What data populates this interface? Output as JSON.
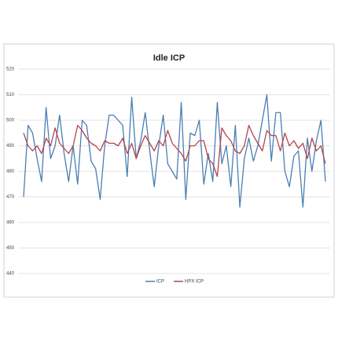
{
  "chart_data": {
    "type": "line",
    "title": "Idle ICP",
    "categories": [
      null,
      null,
      null,
      null,
      null,
      null,
      null,
      null,
      null,
      null,
      null,
      null,
      null,
      null,
      null,
      null,
      null,
      null,
      null,
      null,
      null,
      null,
      null,
      null,
      null,
      null,
      null,
      null,
      null,
      null,
      null,
      null,
      null,
      null,
      null,
      null,
      null,
      null,
      null,
      null,
      null,
      null,
      null,
      null,
      null,
      null,
      null,
      null,
      null,
      null,
      null,
      null,
      null,
      null,
      null,
      null,
      null,
      null,
      null,
      null,
      null,
      null,
      null,
      null,
      null,
      null,
      null,
      null
    ],
    "series": [
      {
        "name": "ICP",
        "color": "#4a7eb5",
        "values": [
          470,
          498,
          495,
          485,
          476,
          505,
          485,
          490,
          502,
          487,
          476,
          490,
          475,
          500,
          498,
          484,
          481,
          469,
          490,
          502,
          502,
          500,
          498,
          478,
          509,
          485,
          492,
          503,
          488,
          474,
          490,
          502,
          483,
          480,
          477,
          507,
          469,
          495,
          494,
          500,
          475,
          487,
          476,
          507,
          483,
          490,
          474,
          498,
          466,
          485,
          493,
          484,
          490,
          500,
          510,
          484,
          503,
          503,
          480,
          474,
          486,
          488,
          466,
          493,
          480,
          492,
          500,
          476
        ]
      },
      {
        "name": "HPX ICP",
        "color": "#b5434a",
        "values": [
          495,
          490,
          488,
          490,
          487,
          493,
          490,
          497,
          491,
          489,
          487,
          490,
          498,
          496,
          493,
          491,
          490,
          488,
          492,
          491,
          491,
          490,
          493,
          487,
          491,
          485,
          490,
          494,
          491,
          488,
          492,
          490,
          496,
          491,
          489,
          487,
          484,
          490,
          490,
          492,
          492,
          485,
          483,
          478,
          497,
          494,
          492,
          488,
          487,
          490,
          498,
          494,
          491,
          488,
          496,
          494,
          494,
          488,
          495,
          490,
          492,
          489,
          491,
          485,
          493,
          488,
          490,
          483
        ]
      }
    ],
    "ylim": [
      440,
      520
    ],
    "yticks": [
      440,
      450,
      460,
      470,
      480,
      490,
      500,
      510,
      520
    ],
    "grid": true,
    "legend": "bottom"
  }
}
